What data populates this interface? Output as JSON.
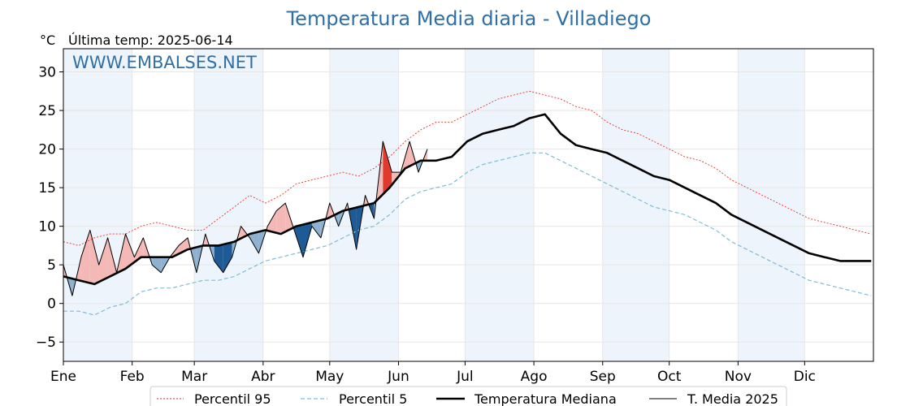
{
  "chart_data": {
    "type": "line",
    "title": "Temperatura Media diaria - Villadiego",
    "unit_label": "°C",
    "last_temp_label": "Última temp: 2025-06-14",
    "watermark": "WWW.EMBALSES.NET",
    "xlabel": "",
    "ylabel": "",
    "x_tick_labels": [
      "Ene",
      "Feb",
      "Mar",
      "Abr",
      "May",
      "Jun",
      "Jul",
      "Ago",
      "Sep",
      "Oct",
      "Nov",
      "Dic"
    ],
    "x_tick_days": [
      1,
      32,
      60,
      91,
      121,
      152,
      182,
      213,
      244,
      274,
      305,
      335
    ],
    "y_ticks": [
      -5,
      0,
      5,
      10,
      15,
      20,
      25,
      30
    ],
    "xlim": [
      1,
      366
    ],
    "ylim": [
      -7.5,
      33
    ],
    "grid": true,
    "legend_position": "bottom",
    "colors": {
      "p95": "#e8312a",
      "p5": "#7fbcd2",
      "median": "#000000",
      "t2025": "#000000",
      "fill_above": "#f4b8b6",
      "fill_above_extreme": "#e03a2e",
      "fill_below": "#8fb1d1",
      "fill_below_extreme": "#1e5b96",
      "month_shade": "#eef4fb",
      "title": "#2f6fa6"
    },
    "series": [
      {
        "name": "Percentil 95",
        "style": "dotted-red",
        "x": [
          1,
          8,
          15,
          22,
          29,
          36,
          43,
          50,
          57,
          64,
          71,
          78,
          85,
          92,
          99,
          106,
          113,
          120,
          127,
          134,
          141,
          148,
          155,
          162,
          169,
          176,
          183,
          190,
          197,
          204,
          211,
          218,
          225,
          232,
          239,
          246,
          253,
          260,
          267,
          274,
          281,
          288,
          295,
          302,
          309,
          316,
          323,
          330,
          337,
          344,
          351,
          358,
          365
        ],
        "values": [
          8,
          7.5,
          8.5,
          9,
          9,
          10,
          10.5,
          10,
          9.5,
          9.5,
          11,
          12.5,
          14,
          13,
          14,
          15.5,
          16,
          16.5,
          17,
          16.5,
          17.5,
          19,
          21,
          22.5,
          23.5,
          23.5,
          24.5,
          25.5,
          26.5,
          27,
          27.5,
          27,
          26.5,
          25.5,
          25,
          23.5,
          22.5,
          22,
          21,
          20,
          19,
          18.5,
          17.5,
          16,
          15,
          14,
          13,
          12,
          11,
          10.5,
          10,
          9.5,
          9
        ]
      },
      {
        "name": "Percentil 5",
        "style": "dashed-lightblue",
        "x": [
          1,
          8,
          15,
          22,
          29,
          36,
          43,
          50,
          57,
          64,
          71,
          78,
          85,
          92,
          99,
          106,
          113,
          120,
          127,
          134,
          141,
          148,
          155,
          162,
          169,
          176,
          183,
          190,
          197,
          204,
          211,
          218,
          225,
          232,
          239,
          246,
          253,
          260,
          267,
          274,
          281,
          288,
          295,
          302,
          309,
          316,
          323,
          330,
          337,
          344,
          351,
          358,
          365
        ],
        "values": [
          -1,
          -1,
          -1.5,
          -0.5,
          0,
          1.5,
          2,
          2,
          2.5,
          3,
          3,
          3.5,
          4.5,
          5.5,
          6,
          6.5,
          7,
          7.5,
          8.5,
          9.5,
          10,
          11.5,
          13.5,
          14.5,
          15,
          15.5,
          17,
          18,
          18.5,
          19,
          19.5,
          19.5,
          18.5,
          17.5,
          16.5,
          15.5,
          14.5,
          13.5,
          12.5,
          12,
          11.5,
          10.5,
          9.5,
          8,
          7,
          6,
          5,
          4,
          3,
          2.5,
          2,
          1.5,
          1
        ]
      },
      {
        "name": "Temperatura Mediana",
        "style": "thick-black",
        "x": [
          1,
          8,
          15,
          22,
          29,
          36,
          43,
          50,
          57,
          64,
          71,
          78,
          85,
          92,
          99,
          106,
          113,
          120,
          127,
          134,
          141,
          148,
          155,
          162,
          169,
          176,
          183,
          190,
          197,
          204,
          211,
          218,
          225,
          232,
          239,
          246,
          253,
          260,
          267,
          274,
          281,
          288,
          295,
          302,
          309,
          316,
          323,
          330,
          337,
          344,
          351,
          358,
          365
        ],
        "values": [
          3.5,
          3,
          2.5,
          3.5,
          4.5,
          6,
          6,
          6,
          7,
          7.5,
          7.5,
          8,
          9,
          9.5,
          9,
          10,
          10.5,
          11,
          12,
          12.5,
          13,
          15,
          17.5,
          18.5,
          18.5,
          19,
          21,
          22,
          22.5,
          23,
          24,
          24.5,
          22,
          20.5,
          20,
          19.5,
          18.5,
          17.5,
          16.5,
          16,
          15,
          14,
          13,
          11.5,
          10.5,
          9.5,
          8.5,
          7.5,
          6.5,
          6,
          5.5,
          5.5,
          5.5
        ]
      },
      {
        "name": "T. Media 2025",
        "style": "thin-black",
        "x": [
          1,
          5,
          9,
          13,
          17,
          21,
          25,
          29,
          33,
          37,
          41,
          45,
          49,
          53,
          57,
          61,
          65,
          69,
          73,
          77,
          81,
          85,
          89,
          93,
          97,
          101,
          105,
          109,
          113,
          117,
          121,
          125,
          129,
          133,
          137,
          141,
          145,
          149,
          153,
          157,
          161,
          165
        ],
        "values": [
          5,
          1,
          6,
          9.5,
          5,
          8.5,
          4,
          9,
          6,
          8.5,
          5,
          4,
          6,
          7.5,
          8.5,
          4,
          9,
          5.5,
          4,
          6,
          10,
          8.5,
          6.5,
          10,
          12,
          13,
          9.5,
          6,
          10,
          8.5,
          13,
          10,
          13,
          7,
          14,
          11,
          21,
          17,
          17,
          21,
          17,
          20
        ]
      }
    ]
  },
  "legend": {
    "items": [
      {
        "label": "Percentil 95"
      },
      {
        "label": "Percentil 5"
      },
      {
        "label": "Temperatura Mediana"
      },
      {
        "label": "T. Media 2025"
      }
    ]
  }
}
